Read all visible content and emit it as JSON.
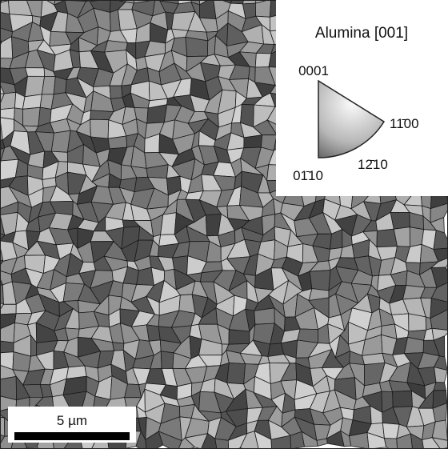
{
  "legend": {
    "title": "Alumina [001]",
    "labels": {
      "top": "0001",
      "right": "11̄00",
      "bottom_right": "12̄10",
      "bottom_left": "01̄10"
    }
  },
  "scale_bar": {
    "label": "5 µm"
  }
}
